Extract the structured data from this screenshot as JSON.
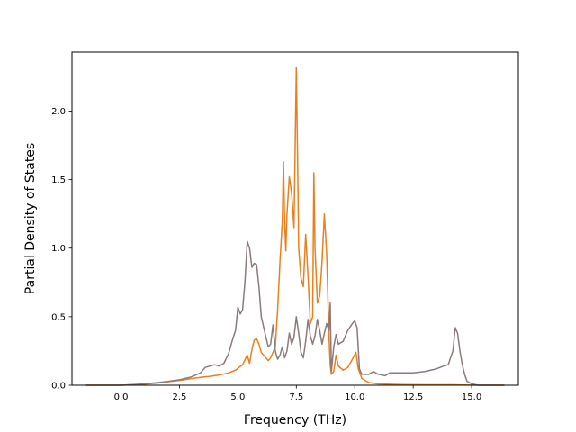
{
  "chart_data": {
    "type": "line",
    "title": "",
    "xlabel": "Frequency (THz)",
    "ylabel": "Partial Density of States",
    "xlim": [
      -2.1,
      17.0
    ],
    "ylim": [
      0,
      2.43
    ],
    "xticks": [
      0.0,
      2.5,
      5.0,
      7.5,
      10.0,
      12.5,
      15.0
    ],
    "xtick_labels": [
      "0.0",
      "2.5",
      "5.0",
      "7.5",
      "10.0",
      "12.5",
      "15.0"
    ],
    "yticks": [
      0.0,
      0.5,
      1.0,
      1.5,
      2.0
    ],
    "ytick_labels": [
      "0.0",
      "0.5",
      "1.0",
      "1.5",
      "2.0"
    ],
    "grid": false,
    "legend": "none",
    "series": [
      {
        "color": "#e8801f",
        "points": [
          [
            -1.5,
            0
          ],
          [
            0,
            0
          ],
          [
            0.5,
            0.003
          ],
          [
            1.0,
            0.008
          ],
          [
            1.5,
            0.015
          ],
          [
            2.0,
            0.025
          ],
          [
            2.5,
            0.035
          ],
          [
            3.0,
            0.048
          ],
          [
            3.5,
            0.06
          ],
          [
            3.8,
            0.065
          ],
          [
            4.2,
            0.075
          ],
          [
            4.6,
            0.09
          ],
          [
            4.9,
            0.11
          ],
          [
            5.2,
            0.15
          ],
          [
            5.4,
            0.22
          ],
          [
            5.5,
            0.16
          ],
          [
            5.6,
            0.26
          ],
          [
            5.7,
            0.33
          ],
          [
            5.8,
            0.34
          ],
          [
            5.9,
            0.3
          ],
          [
            6.0,
            0.24
          ],
          [
            6.2,
            0.2
          ],
          [
            6.3,
            0.18
          ],
          [
            6.4,
            0.2
          ],
          [
            6.5,
            0.24
          ],
          [
            6.6,
            0.28
          ],
          [
            6.7,
            0.55
          ],
          [
            6.8,
            0.9
          ],
          [
            6.9,
            1.2
          ],
          [
            6.95,
            1.63
          ],
          [
            7.0,
            1.2
          ],
          [
            7.05,
            0.98
          ],
          [
            7.1,
            1.25
          ],
          [
            7.2,
            1.52
          ],
          [
            7.3,
            1.4
          ],
          [
            7.4,
            1.15
          ],
          [
            7.5,
            2.32
          ],
          [
            7.55,
            1.7
          ],
          [
            7.6,
            1.0
          ],
          [
            7.7,
            0.78
          ],
          [
            7.8,
            0.72
          ],
          [
            7.9,
            1.1
          ],
          [
            8.0,
            0.8
          ],
          [
            8.1,
            0.45
          ],
          [
            8.2,
            0.5
          ],
          [
            8.25,
            1.55
          ],
          [
            8.3,
            1.0
          ],
          [
            8.4,
            0.6
          ],
          [
            8.5,
            0.65
          ],
          [
            8.6,
            0.9
          ],
          [
            8.7,
            1.25
          ],
          [
            8.8,
            0.95
          ],
          [
            8.9,
            0.35
          ],
          [
            8.95,
            0.15
          ],
          [
            9.0,
            0.08
          ],
          [
            9.1,
            0.1
          ],
          [
            9.2,
            0.22
          ],
          [
            9.3,
            0.14
          ],
          [
            9.5,
            0.11
          ],
          [
            9.7,
            0.13
          ],
          [
            9.9,
            0.19
          ],
          [
            10.05,
            0.24
          ],
          [
            10.15,
            0.12
          ],
          [
            10.3,
            0.05
          ],
          [
            10.6,
            0.02
          ],
          [
            11.0,
            0.01
          ],
          [
            12.0,
            0.005
          ],
          [
            13.0,
            0.003
          ],
          [
            14.2,
            0.003
          ],
          [
            14.7,
            0.002
          ],
          [
            15.5,
            0
          ],
          [
            16.4,
            0
          ]
        ]
      },
      {
        "color": "#8c7a7a",
        "points": [
          [
            -1.5,
            0
          ],
          [
            0,
            0
          ],
          [
            0.5,
            0.005
          ],
          [
            1.0,
            0.01
          ],
          [
            1.5,
            0.018
          ],
          [
            2.0,
            0.028
          ],
          [
            2.5,
            0.04
          ],
          [
            3.0,
            0.06
          ],
          [
            3.4,
            0.09
          ],
          [
            3.6,
            0.13
          ],
          [
            3.8,
            0.14
          ],
          [
            4.0,
            0.15
          ],
          [
            4.2,
            0.14
          ],
          [
            4.4,
            0.16
          ],
          [
            4.6,
            0.23
          ],
          [
            4.8,
            0.35
          ],
          [
            4.9,
            0.4
          ],
          [
            5.0,
            0.57
          ],
          [
            5.1,
            0.52
          ],
          [
            5.2,
            0.55
          ],
          [
            5.3,
            0.75
          ],
          [
            5.4,
            1.05
          ],
          [
            5.5,
            1.0
          ],
          [
            5.6,
            0.86
          ],
          [
            5.7,
            0.89
          ],
          [
            5.8,
            0.88
          ],
          [
            5.9,
            0.72
          ],
          [
            6.0,
            0.5
          ],
          [
            6.2,
            0.35
          ],
          [
            6.3,
            0.28
          ],
          [
            6.4,
            0.3
          ],
          [
            6.5,
            0.44
          ],
          [
            6.6,
            0.25
          ],
          [
            6.7,
            0.19
          ],
          [
            6.8,
            0.22
          ],
          [
            6.9,
            0.28
          ],
          [
            7.0,
            0.2
          ],
          [
            7.1,
            0.25
          ],
          [
            7.2,
            0.38
          ],
          [
            7.3,
            0.3
          ],
          [
            7.4,
            0.35
          ],
          [
            7.5,
            0.5
          ],
          [
            7.6,
            0.38
          ],
          [
            7.7,
            0.24
          ],
          [
            7.8,
            0.2
          ],
          [
            7.9,
            0.32
          ],
          [
            8.0,
            0.48
          ],
          [
            8.1,
            0.36
          ],
          [
            8.2,
            0.3
          ],
          [
            8.3,
            0.36
          ],
          [
            8.4,
            0.48
          ],
          [
            8.5,
            0.4
          ],
          [
            8.6,
            0.3
          ],
          [
            8.7,
            0.38
          ],
          [
            8.8,
            0.45
          ],
          [
            8.9,
            0.4
          ],
          [
            8.95,
            0.6
          ],
          [
            9.0,
            0.1
          ],
          [
            9.1,
            0.28
          ],
          [
            9.2,
            0.37
          ],
          [
            9.3,
            0.3
          ],
          [
            9.5,
            0.32
          ],
          [
            9.7,
            0.4
          ],
          [
            9.9,
            0.45
          ],
          [
            10.0,
            0.47
          ],
          [
            10.1,
            0.42
          ],
          [
            10.2,
            0.12
          ],
          [
            10.3,
            0.08
          ],
          [
            10.6,
            0.08
          ],
          [
            10.8,
            0.1
          ],
          [
            11.0,
            0.08
          ],
          [
            11.3,
            0.07
          ],
          [
            11.5,
            0.09
          ],
          [
            12.0,
            0.09
          ],
          [
            12.5,
            0.09
          ],
          [
            13.0,
            0.1
          ],
          [
            13.5,
            0.12
          ],
          [
            13.8,
            0.14
          ],
          [
            14.0,
            0.15
          ],
          [
            14.2,
            0.25
          ],
          [
            14.3,
            0.42
          ],
          [
            14.4,
            0.38
          ],
          [
            14.5,
            0.25
          ],
          [
            14.6,
            0.15
          ],
          [
            14.7,
            0.08
          ],
          [
            14.8,
            0.03
          ],
          [
            15.0,
            0.01
          ],
          [
            15.3,
            0
          ],
          [
            16.4,
            0
          ]
        ]
      }
    ]
  }
}
